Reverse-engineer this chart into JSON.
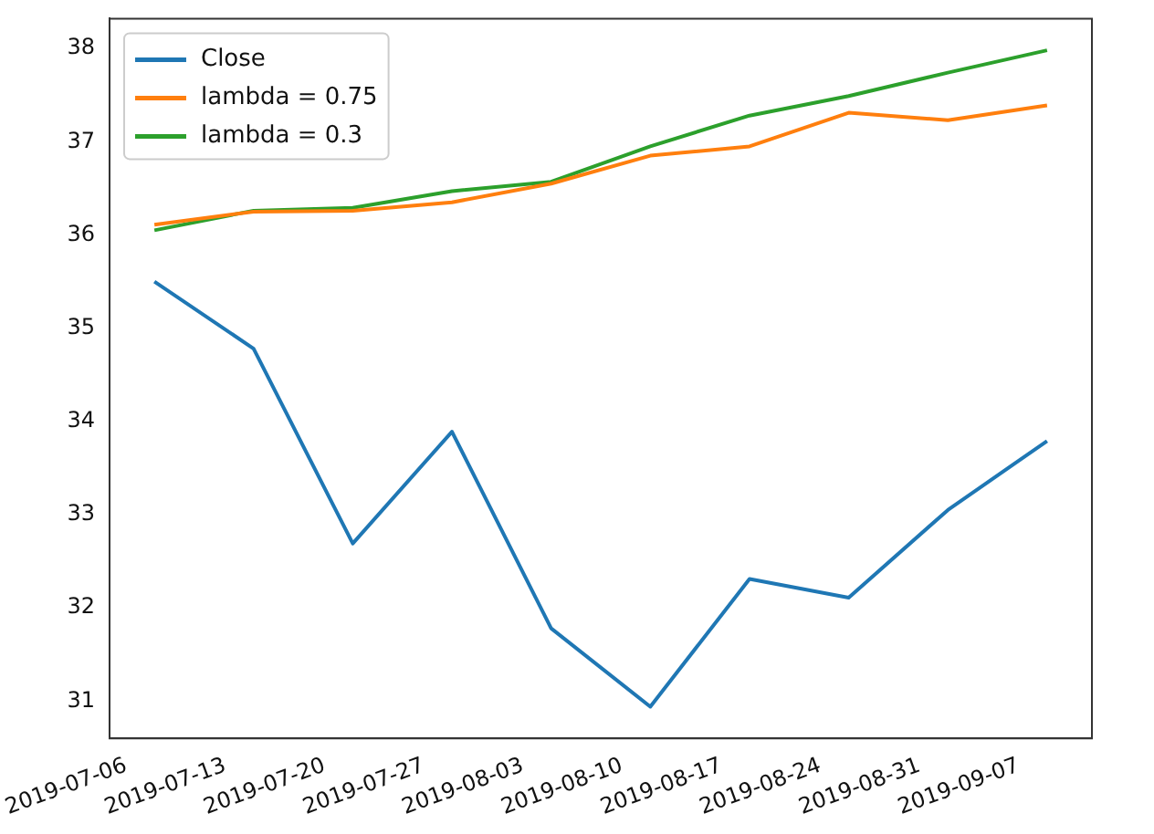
{
  "chart_data": {
    "type": "line",
    "x": [
      "2019-07-08",
      "2019-07-15",
      "2019-07-22",
      "2019-07-29",
      "2019-08-05",
      "2019-08-12",
      "2019-08-19",
      "2019-08-26",
      "2019-09-02",
      "2019-09-09"
    ],
    "series": [
      {
        "name": "Close",
        "color": "#1f77b4",
        "values": [
          35.5,
          34.78,
          32.69,
          33.89,
          31.78,
          30.94,
          32.31,
          32.11,
          33.05,
          33.79
        ]
      },
      {
        "name": "lambda = 0.75",
        "color": "#ff7f0e",
        "values": [
          36.11,
          36.25,
          36.26,
          36.35,
          36.55,
          36.85,
          36.95,
          37.31,
          37.23,
          37.39
        ]
      },
      {
        "name": "lambda = 0.3",
        "color": "#2ca02c",
        "values": [
          36.05,
          36.26,
          36.29,
          36.47,
          36.57,
          36.95,
          37.28,
          37.49,
          37.74,
          37.98
        ]
      }
    ],
    "xlim": [
      "2019-07-04T20:00",
      "2019-09-12T04:00"
    ],
    "xticks": [
      "2019-07-06",
      "2019-07-13",
      "2019-07-20",
      "2019-07-27",
      "2019-08-03",
      "2019-08-10",
      "2019-08-17",
      "2019-08-24",
      "2019-08-31",
      "2019-09-07"
    ],
    "ylim": [
      30.6,
      38.32
    ],
    "yticks": [
      31,
      32,
      33,
      34,
      35,
      36,
      37,
      38
    ],
    "legend": "top left",
    "grid": false,
    "marker": "none",
    "line_style": "solid"
  }
}
